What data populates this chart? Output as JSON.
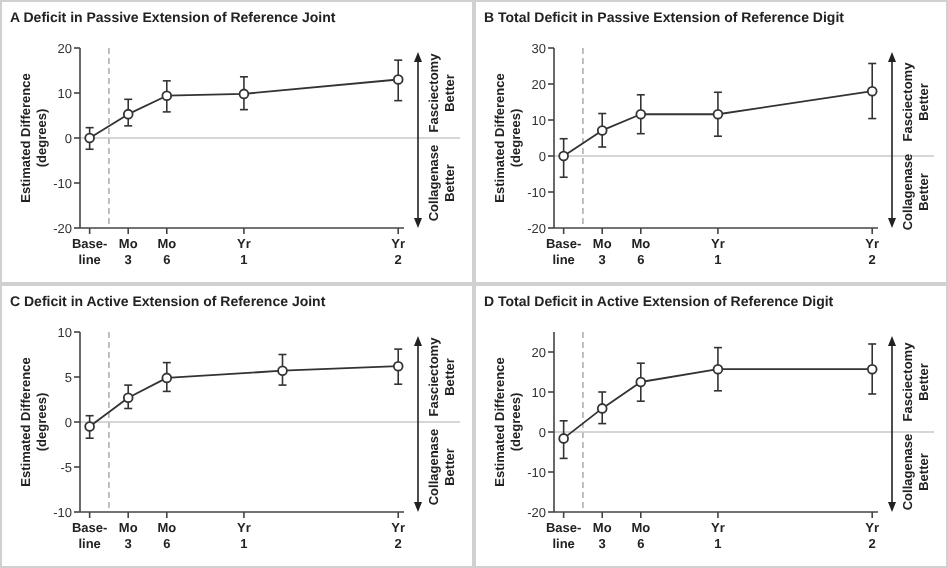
{
  "chart_data": [
    {
      "type": "line",
      "title": "A Deficit in Passive Extension of Reference Joint",
      "ylabel": "Estimated Difference\n(degrees)",
      "categories": [
        "Base-\nline",
        "Mo\n3",
        "Mo\n6",
        null,
        "Yr\n1",
        null,
        null,
        null,
        "Yr\n2"
      ],
      "series": [
        {
          "color": "#333333",
          "values": [
            0,
            5.3,
            9.4,
            null,
            9.8,
            null,
            null,
            null,
            13
          ],
          "errors": [
            [
              -2.5,
              2.3
            ],
            [
              2.7,
              8.6
            ],
            [
              5.8,
              12.7
            ],
            null,
            [
              6.3,
              13.6
            ],
            null,
            null,
            null,
            [
              8.3,
              17.3
            ]
          ]
        }
      ],
      "ylim": [
        -20,
        20
      ],
      "yticks": [
        -20,
        -10,
        0,
        10,
        20
      ],
      "marker": "circle",
      "line_style": "solid",
      "ref_lines": [
        {
          "axis": "y",
          "value": 0,
          "color": "#c8c8c8",
          "line_style": "solid"
        }
      ],
      "annotations": [
        "Fasciectomy\nBetter",
        "Collagenase\nBetter"
      ]
    },
    {
      "type": "line",
      "title": "B Total Deficit in Passive Extension of Reference Digit",
      "ylabel": "Estimated Difference\n(degrees)",
      "categories": [
        "Base-\nline",
        "Mo\n3",
        "Mo\n6",
        null,
        "Yr\n1",
        null,
        null,
        null,
        "Yr\n2"
      ],
      "series": [
        {
          "color": "#333333",
          "values": [
            0,
            7.1,
            11.6,
            null,
            11.6,
            null,
            null,
            null,
            18
          ],
          "errors": [
            [
              -5.9,
              4.8
            ],
            [
              2.5,
              11.8
            ],
            [
              6.2,
              17
            ],
            null,
            [
              5.5,
              17.7
            ],
            null,
            null,
            null,
            [
              10.4,
              25.7
            ]
          ]
        }
      ],
      "ylim": [
        -20,
        30
      ],
      "yticks": [
        -20,
        -10,
        0,
        10,
        20,
        30
      ],
      "marker": "circle",
      "line_style": "solid",
      "ref_lines": [
        {
          "axis": "y",
          "value": 0,
          "color": "#c8c8c8",
          "line_style": "solid"
        }
      ],
      "annotations": [
        "Fasciectomy\nBetter",
        "Collagenase\nBetter"
      ]
    },
    {
      "type": "line",
      "title": "C Deficit in Active Extension of Reference Joint",
      "ylabel": "Estimated Difference\n(degrees)",
      "categories": [
        "Base-\nline",
        "Mo\n3",
        "Mo\n6",
        null,
        "Yr\n1",
        null,
        null,
        null,
        "Yr\n2"
      ],
      "series": [
        {
          "color": "#333333",
          "values": [
            -0.5,
            2.7,
            4.9,
            null,
            null,
            5.7,
            null,
            null,
            6.2
          ],
          "errors": [
            [
              -1.8,
              0.7
            ],
            [
              1.5,
              4.1
            ],
            [
              3.4,
              6.6
            ],
            null,
            null,
            [
              4.1,
              7.5
            ],
            null,
            null,
            [
              4.2,
              8.1
            ]
          ]
        }
      ],
      "ylim": [
        -10,
        10
      ],
      "yticks": [
        -10,
        -5,
        0,
        5,
        10
      ],
      "marker": "circle",
      "line_style": "solid",
      "ref_lines": [
        {
          "axis": "y",
          "value": 0,
          "color": "#c8c8c8",
          "line_style": "solid"
        }
      ],
      "annotations": [
        "Fasciectomy\nBetter",
        "Collagenase\nBetter"
      ]
    },
    {
      "type": "line",
      "title": "D Total Deficit in Active Extension of Reference Digit",
      "ylabel": "Estimated Difference\n(degrees)",
      "categories": [
        "Base-\nline",
        "Mo\n3",
        "Mo\n6",
        null,
        "Yr\n1",
        null,
        null,
        null,
        "Yr\n2"
      ],
      "series": [
        {
          "color": "#333333",
          "values": [
            -1.6,
            5.9,
            12.5,
            null,
            15.7,
            null,
            null,
            null,
            15.7
          ],
          "errors": [
            [
              -6.6,
              2.8
            ],
            [
              2.1,
              10
            ],
            [
              7.7,
              17.2
            ],
            null,
            [
              10.3,
              21.1
            ],
            null,
            null,
            null,
            [
              9.5,
              22
            ]
          ]
        }
      ],
      "ylim": [
        -20,
        25
      ],
      "yticks": [
        -20,
        -10,
        0,
        10,
        20
      ],
      "marker": "circle",
      "line_style": "solid",
      "ref_lines": [
        {
          "axis": "y",
          "value": 0,
          "color": "#c8c8c8",
          "line_style": "solid"
        }
      ],
      "annotations": [
        "Fasciectomy\nBetter",
        "Collagenase\nBetter"
      ]
    }
  ]
}
